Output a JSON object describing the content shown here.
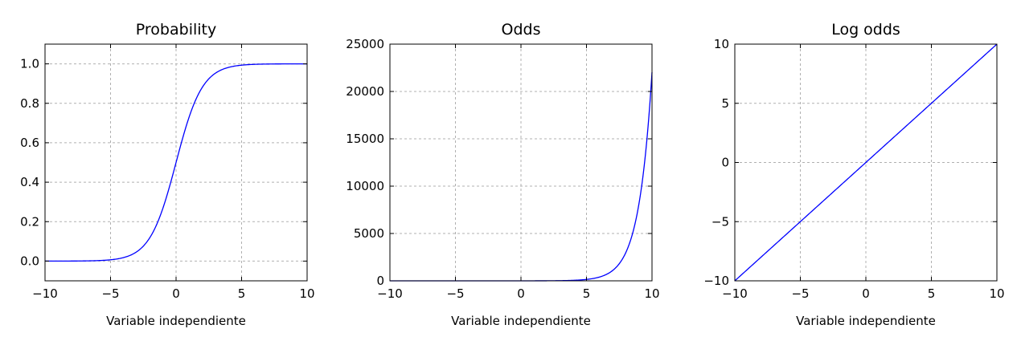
{
  "figure": {
    "background": "#ffffff"
  },
  "chart_data": [
    {
      "type": "line",
      "title": "Probability",
      "xlabel": "Variable independiente",
      "ylabel": "",
      "function": "logistic",
      "xlim": [
        -10,
        10
      ],
      "ylim": [
        -0.1,
        1.1
      ],
      "xticks": [
        -10,
        -5,
        0,
        5,
        10
      ],
      "xtick_labels": [
        "−10",
        "−5",
        "0",
        "5",
        "10"
      ],
      "yticks": [
        0.0,
        0.2,
        0.4,
        0.6,
        0.8,
        1.0
      ],
      "ytick_labels": [
        "0.0",
        "0.2",
        "0.4",
        "0.6",
        "0.8",
        "1.0"
      ],
      "grid": true,
      "series": [
        {
          "color": "#0000ff",
          "x": [
            -10,
            -8,
            -6,
            -5,
            -4,
            -3,
            -2,
            -1,
            0,
            1,
            2,
            3,
            4,
            5,
            6,
            8,
            10
          ],
          "y": [
            5e-05,
            0.0003,
            0.0025,
            0.0067,
            0.018,
            0.047,
            0.119,
            0.269,
            0.5,
            0.731,
            0.881,
            0.953,
            0.982,
            0.9933,
            0.9975,
            0.9997,
            0.99995
          ]
        }
      ]
    },
    {
      "type": "line",
      "title": "Odds",
      "xlabel": "Variable independiente",
      "ylabel": "",
      "function": "exp",
      "xlim": [
        -10,
        10
      ],
      "ylim": [
        0,
        25000
      ],
      "xticks": [
        -10,
        -5,
        0,
        5,
        10
      ],
      "xtick_labels": [
        "−10",
        "−5",
        "0",
        "5",
        "10"
      ],
      "yticks": [
        0,
        5000,
        10000,
        15000,
        20000,
        25000
      ],
      "ytick_labels": [
        "0",
        "5000",
        "10000",
        "15000",
        "20000",
        "25000"
      ],
      "grid": true,
      "series": [
        {
          "color": "#0000ff",
          "x": [
            -10,
            -5,
            0,
            5,
            6,
            7,
            8,
            9,
            9.5,
            10
          ],
          "y": [
            0,
            0,
            1,
            148,
            403,
            1097,
            2981,
            8103,
            13360,
            22026
          ]
        }
      ]
    },
    {
      "type": "line",
      "title": "Log odds",
      "xlabel": "Variable independiente",
      "ylabel": "",
      "function": "linear",
      "xlim": [
        -10,
        10
      ],
      "ylim": [
        -10,
        10
      ],
      "xticks": [
        -10,
        -5,
        0,
        5,
        10
      ],
      "xtick_labels": [
        "−10",
        "−5",
        "0",
        "5",
        "10"
      ],
      "yticks": [
        -10,
        -5,
        0,
        5,
        10
      ],
      "ytick_labels": [
        "−10",
        "−5",
        "0",
        "5",
        "10"
      ],
      "grid": true,
      "series": [
        {
          "color": "#0000ff",
          "x": [
            -10,
            10
          ],
          "y": [
            -10,
            10
          ]
        }
      ]
    }
  ]
}
